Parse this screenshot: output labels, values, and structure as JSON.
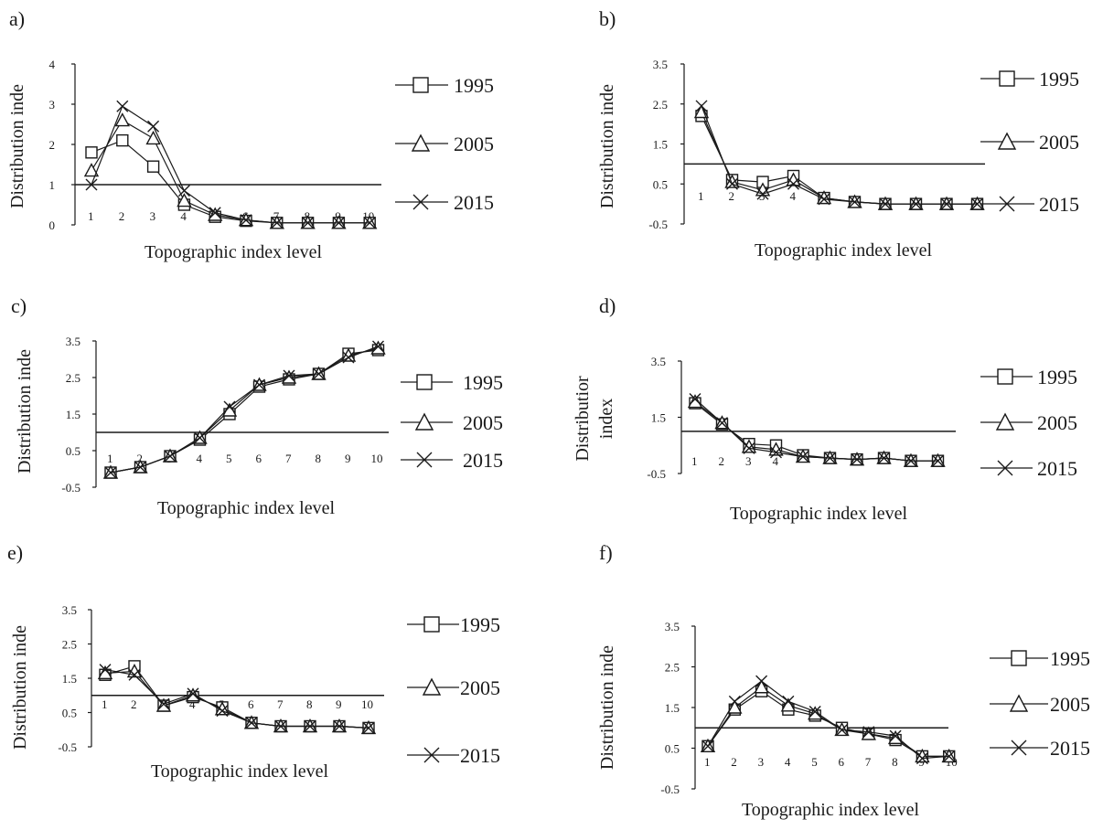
{
  "chart_data": [
    {
      "panel": "a)",
      "type": "line",
      "xlabel": "Topographic index level",
      "ylabel": "Distribution inde",
      "x": [
        1,
        2,
        3,
        4,
        5,
        6,
        7,
        8,
        9,
        10
      ],
      "x_tick_labels": [
        "1",
        "2",
        "3",
        "4",
        "5",
        "6",
        "7",
        "8",
        "9",
        "10"
      ],
      "ylim": [
        0,
        4
      ],
      "y_ticks": [
        0,
        1,
        2,
        3,
        4
      ],
      "y_tick_labels": [
        "0",
        "1",
        "2",
        "3",
        "4"
      ],
      "reference_line": 1,
      "series": [
        {
          "name": "1995",
          "marker": "square",
          "values": [
            1.8,
            2.1,
            1.45,
            0.5,
            0.2,
            0.1,
            0.05,
            0.05,
            0.05,
            0.05
          ]
        },
        {
          "name": "2005",
          "marker": "triangle",
          "values": [
            1.35,
            2.6,
            2.15,
            0.6,
            0.25,
            0.12,
            0.05,
            0.05,
            0.05,
            0.05
          ]
        },
        {
          "name": "2015",
          "marker": "x",
          "values": [
            1.0,
            2.95,
            2.45,
            0.85,
            0.3,
            0.12,
            0.05,
            0.05,
            0.05,
            0.05
          ]
        }
      ]
    },
    {
      "panel": "b)",
      "type": "line",
      "xlabel": "Topographic index level",
      "ylabel": "Distribution inde",
      "x": [
        1,
        2,
        3,
        4,
        5,
        6,
        7,
        8,
        9,
        10
      ],
      "x_tick_labels": [
        "1",
        "2",
        "3",
        "4"
      ],
      "ylim": [
        -0.5,
        3.5
      ],
      "y_ticks": [
        -0.5,
        0.5,
        1.5,
        2.5,
        3.5
      ],
      "y_tick_labels": [
        "-0.5",
        "0.5",
        "1.5",
        "2.5",
        "3.5"
      ],
      "reference_line": 1,
      "series": [
        {
          "name": "1995",
          "marker": "square",
          "values": [
            2.2,
            0.6,
            0.55,
            0.7,
            0.15,
            0.05,
            0.0,
            0.0,
            0.0,
            0.0
          ]
        },
        {
          "name": "2005",
          "marker": "triangle",
          "values": [
            2.3,
            0.55,
            0.35,
            0.6,
            0.15,
            0.05,
            0.0,
            0.0,
            0.0,
            0.0
          ]
        },
        {
          "name": "2015",
          "marker": "x",
          "values": [
            2.45,
            0.5,
            0.25,
            0.5,
            0.12,
            0.05,
            0.0,
            0.0,
            0.0,
            0.0
          ]
        }
      ]
    },
    {
      "panel": "c)",
      "type": "line",
      "xlabel": "Topographic index level",
      "ylabel": "Distribution inde",
      "x": [
        1,
        2,
        3,
        4,
        5,
        6,
        7,
        8,
        9,
        10
      ],
      "x_tick_labels": [
        "1",
        "2",
        "3",
        "4",
        "5",
        "6",
        "7",
        "8",
        "9",
        "10"
      ],
      "ylim": [
        -0.5,
        3.5
      ],
      "y_ticks": [
        -0.5,
        0.5,
        1.5,
        2.5,
        3.5
      ],
      "y_tick_labels": [
        "-0.5",
        "0.5",
        "1.5",
        "2.5",
        "3.5"
      ],
      "reference_line": 1,
      "series": [
        {
          "name": "1995",
          "marker": "square",
          "values": [
            -0.1,
            0.05,
            0.35,
            0.8,
            1.5,
            2.25,
            2.45,
            2.6,
            3.15,
            3.25
          ]
        },
        {
          "name": "2005",
          "marker": "triangle",
          "values": [
            -0.1,
            0.05,
            0.35,
            0.85,
            1.6,
            2.3,
            2.5,
            2.6,
            3.1,
            3.3
          ]
        },
        {
          "name": "2015",
          "marker": "x",
          "values": [
            -0.1,
            0.05,
            0.35,
            0.85,
            1.7,
            2.3,
            2.55,
            2.6,
            3.05,
            3.35
          ]
        }
      ]
    },
    {
      "panel": "d)",
      "type": "line",
      "xlabel": "Topographic index level",
      "ylabel_lines": [
        "Distributior",
        "index"
      ],
      "x": [
        1,
        2,
        3,
        4,
        5,
        6,
        7,
        8,
        9,
        10
      ],
      "x_tick_labels": [
        "1",
        "2",
        "3",
        "4"
      ],
      "ylim": [
        -0.5,
        3.5
      ],
      "y_ticks": [
        -0.5,
        1.5,
        3.5
      ],
      "y_tick_labels": [
        "-0.5",
        "1.5",
        "3.5"
      ],
      "reference_line": 1,
      "series": [
        {
          "name": "1995",
          "marker": "square",
          "values": [
            2.0,
            1.25,
            0.55,
            0.5,
            0.15,
            0.05,
            0.0,
            0.05,
            -0.05,
            -0.05
          ]
        },
        {
          "name": "2005",
          "marker": "triangle",
          "values": [
            2.05,
            1.3,
            0.45,
            0.35,
            0.1,
            0.05,
            0.0,
            0.05,
            -0.05,
            -0.05
          ]
        },
        {
          "name": "2015",
          "marker": "x",
          "values": [
            2.15,
            1.3,
            0.4,
            0.25,
            0.1,
            0.05,
            0.0,
            0.05,
            -0.05,
            -0.05
          ]
        }
      ]
    },
    {
      "panel": "e)",
      "type": "line",
      "xlabel": "Topographic index level",
      "ylabel": "Distribution inde",
      "x": [
        1,
        2,
        3,
        4,
        5,
        6,
        7,
        8,
        9,
        10
      ],
      "x_tick_labels": [
        "1",
        "2",
        "3",
        "4",
        "5",
        "6",
        "7",
        "8",
        "9",
        "10"
      ],
      "ylim": [
        -0.5,
        3.5
      ],
      "y_ticks": [
        -0.5,
        0.5,
        1.5,
        2.5,
        3.5
      ],
      "y_tick_labels": [
        "-0.5",
        "0.5",
        "1.5",
        "2.5",
        "3.5"
      ],
      "reference_line": 1,
      "series": [
        {
          "name": "1995",
          "marker": "square",
          "values": [
            1.6,
            1.85,
            0.7,
            0.95,
            0.65,
            0.2,
            0.1,
            0.1,
            0.1,
            0.05
          ]
        },
        {
          "name": "2005",
          "marker": "triangle",
          "values": [
            1.65,
            1.7,
            0.7,
            1.0,
            0.6,
            0.2,
            0.1,
            0.1,
            0.1,
            0.05
          ]
        },
        {
          "name": "2015",
          "marker": "x",
          "values": [
            1.75,
            1.6,
            0.75,
            1.05,
            0.55,
            0.2,
            0.1,
            0.1,
            0.1,
            0.05
          ]
        }
      ]
    },
    {
      "panel": "f)",
      "type": "line",
      "xlabel": "Topographic index level",
      "ylabel": "Distribution inde",
      "x": [
        1,
        2,
        3,
        4,
        5,
        6,
        7,
        8,
        9,
        10
      ],
      "x_tick_labels": [
        "1",
        "2",
        "3",
        "4",
        "5",
        "6",
        "7",
        "8",
        "9",
        "10"
      ],
      "ylim": [
        -0.5,
        3.5
      ],
      "y_ticks": [
        -0.5,
        0.5,
        1.5,
        2.5,
        3.5
      ],
      "y_tick_labels": [
        "-0.5",
        "0.5",
        "1.5",
        "2.5",
        "3.5"
      ],
      "reference_line": 1,
      "series": [
        {
          "name": "1995",
          "marker": "square",
          "values": [
            0.55,
            1.45,
            1.9,
            1.45,
            1.3,
            1.0,
            0.85,
            0.7,
            0.3,
            0.3
          ]
        },
        {
          "name": "2005",
          "marker": "triangle",
          "values": [
            0.55,
            1.5,
            2.0,
            1.55,
            1.35,
            0.95,
            0.85,
            0.75,
            0.3,
            0.3
          ]
        },
        {
          "name": "2015",
          "marker": "x",
          "values": [
            0.55,
            1.65,
            2.15,
            1.65,
            1.4,
            0.95,
            0.9,
            0.8,
            0.25,
            0.3
          ]
        }
      ]
    }
  ]
}
